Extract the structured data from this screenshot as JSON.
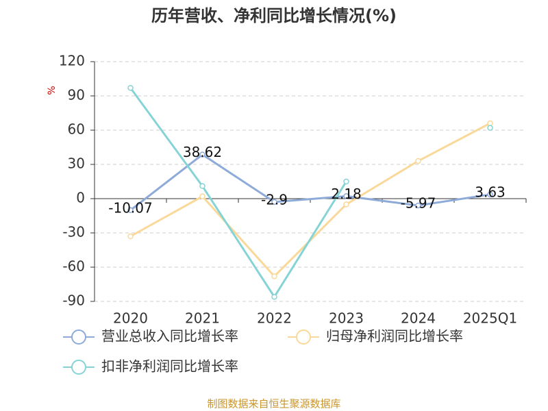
{
  "chart_data": {
    "type": "line",
    "title": "历年营收、净利同比增长情况(%)",
    "y_label": "%",
    "source": "制图数据来自恒生聚源数据库",
    "categories": [
      "2020",
      "2021",
      "2022",
      "2023",
      "2024",
      "2025Q1"
    ],
    "series": [
      {
        "name": "营业总收入同比增长率",
        "color": "#8eaad8",
        "values": [
          -10.07,
          38.62,
          -2.9,
          2.18,
          -5.97,
          3.63
        ],
        "show_labels": true
      },
      {
        "name": "归母净利润同比增长率",
        "color": "#fad89a",
        "values": [
          -33,
          2,
          -68,
          -5,
          33,
          66
        ],
        "show_labels": false
      },
      {
        "name": "扣非净利润同比增长率",
        "color": "#86d3d6",
        "values": [
          97,
          11,
          -86,
          15,
          null,
          62
        ],
        "show_labels": false
      }
    ],
    "ylim": [
      -90,
      120
    ],
    "yticks": [
      -90,
      -60,
      -30,
      0,
      30,
      60,
      90,
      120
    ],
    "grid": true
  }
}
